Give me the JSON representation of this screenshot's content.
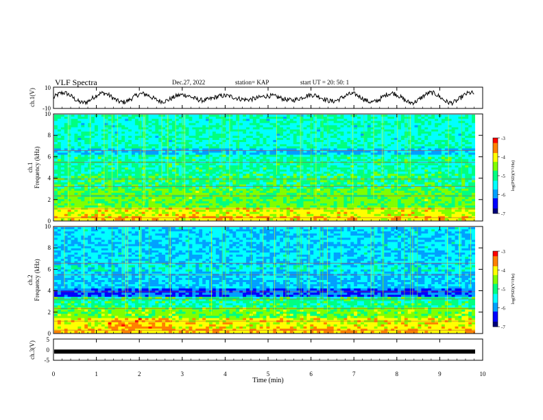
{
  "header": {
    "title": "VLF Spectra",
    "date": "Dec.27, 2022",
    "station": "station= KAP",
    "start": "start  UT  =   20: 50: 1"
  },
  "colors": {
    "waveform": "#000000",
    "colormap": [
      "#00007a",
      "#0000ff",
      "#00a0ff",
      "#00ffff",
      "#00ff80",
      "#80ff00",
      "#ffff00",
      "#ff8000",
      "#ff0000"
    ]
  },
  "chart_data": [
    {
      "type": "line",
      "name": "ch1",
      "ylabel": "ch.1(V)",
      "ylim": [
        -10,
        10
      ],
      "yticks": [
        "10",
        "-10"
      ],
      "xlim": [
        0,
        10
      ],
      "description_hint": "noisy oscillating waveform between about -6 and 7 V"
    },
    {
      "type": "heatmap",
      "name": "ch1-spectrogram",
      "ylabel": "Frequency (kHz)",
      "channel_label": "ch.1",
      "ylim": [
        0,
        10
      ],
      "yticks": [
        "0",
        "2",
        "4",
        "6",
        "8",
        "10"
      ],
      "xlim": [
        0,
        10
      ],
      "colorbar": {
        "label": "log(PSD)(V²/Hz)",
        "range": [
          -7,
          -3
        ],
        "ticks": [
          "-3",
          "-4",
          "-5",
          "-6",
          "-7"
        ]
      }
    },
    {
      "type": "heatmap",
      "name": "ch2-spectrogram",
      "ylabel": "Frequency (kHz)",
      "channel_label": "ch.2",
      "ylim": [
        0,
        10
      ],
      "yticks": [
        "0",
        "2",
        "4",
        "6",
        "8",
        "10"
      ],
      "xlim": [
        0,
        10
      ],
      "colorbar": {
        "label": "log(PSD)(V²/Hz)",
        "range": [
          -7,
          -3
        ],
        "ticks": [
          "-3",
          "-4",
          "-5",
          "-6",
          "-7"
        ]
      }
    },
    {
      "type": "line",
      "name": "ch3",
      "ylabel": "ch.3(V)",
      "ylim": [
        -5,
        5
      ],
      "yticks": [
        "5",
        "0",
        "-5"
      ],
      "xlim": [
        0,
        10
      ],
      "xlabel": "Time (min)",
      "xticks": [
        "0",
        "1",
        "2",
        "3",
        "4",
        "5",
        "6",
        "7",
        "8",
        "9",
        "10"
      ],
      "level": -0.9
    }
  ]
}
